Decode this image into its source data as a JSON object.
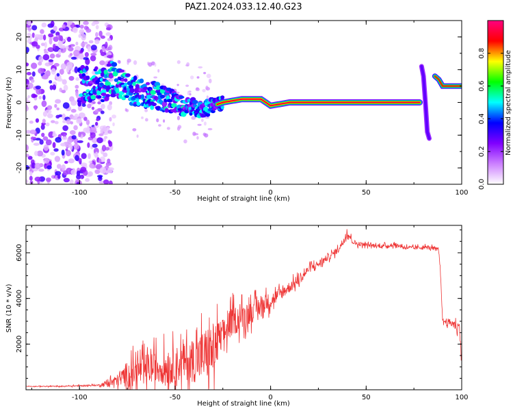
{
  "title": "PAZ1.2024.033.12.40.G23",
  "chart_data": [
    {
      "type": "heatmap",
      "xlabel": "Height of straight line (km)",
      "ylabel": "Frequency (Hz)",
      "xlim": [
        -128,
        100
      ],
      "ylim": [
        -25,
        25
      ],
      "xticks": [
        -100,
        -50,
        0,
        50,
        100
      ],
      "yticks": [
        -20,
        -10,
        0,
        10,
        20
      ],
      "colorbar": {
        "label": "Normalized spectral amplitude",
        "range": [
          0,
          1
        ],
        "ticks": [
          0.0,
          0.2,
          0.4,
          0.6,
          0.8
        ],
        "colormap": [
          "#ffffff",
          "#cc80ff",
          "#8000ff",
          "#0000ff",
          "#00ffff",
          "#00ff00",
          "#ffff00",
          "#ff0000",
          "#ff0080"
        ]
      },
      "signal_track": [
        {
          "x": -85,
          "y": 8
        },
        {
          "x": -75,
          "y": 4
        },
        {
          "x": -60,
          "y": 2
        },
        {
          "x": -45,
          "y": -1
        },
        {
          "x": -35,
          "y": -2
        },
        {
          "x": -25,
          "y": 0
        },
        {
          "x": -15,
          "y": 1
        },
        {
          "x": -5,
          "y": 1
        },
        {
          "x": 0,
          "y": -1
        },
        {
          "x": 10,
          "y": 0
        },
        {
          "x": 30,
          "y": 0
        },
        {
          "x": 50,
          "y": 0
        },
        {
          "x": 78,
          "y": 0
        },
        {
          "x": 80,
          "y": 10
        },
        {
          "x": 82,
          "y": -11
        },
        {
          "x": 86,
          "y": 8
        },
        {
          "x": 90,
          "y": 5
        },
        {
          "x": 100,
          "y": 5
        }
      ]
    },
    {
      "type": "line",
      "xlabel": "Height of straight line (km)",
      "ylabel": "SNR (10 * v/v)",
      "xlim": [
        -128,
        100
      ],
      "ylim": [
        0,
        7200
      ],
      "xticks": [
        -100,
        -50,
        0,
        50,
        100
      ],
      "yticks": [
        2000,
        4000,
        6000
      ],
      "color": "#ee3333",
      "series": [
        {
          "x": [
            -128,
            -110,
            -90,
            -80,
            -75,
            -70,
            -65,
            -60,
            -55,
            -50,
            -45,
            -40,
            -35,
            -30,
            -27,
            -25,
            -22,
            -20,
            -15,
            -10,
            -5,
            0,
            5,
            10,
            15,
            20,
            25,
            30,
            35,
            38,
            40,
            43,
            45,
            50,
            55,
            60,
            65,
            70,
            75,
            80,
            85,
            88,
            89,
            90,
            92,
            95,
            97,
            99,
            100
          ],
          "y": [
            150,
            150,
            200,
            400,
            700,
            800,
            900,
            1000,
            1000,
            1100,
            1200,
            1300,
            1500,
            1700,
            2200,
            2400,
            2800,
            3000,
            3200,
            3400,
            3700,
            3900,
            4200,
            4500,
            4800,
            5300,
            5500,
            5800,
            6100,
            6500,
            6900,
            6500,
            6400,
            6350,
            6300,
            6300,
            6350,
            6250,
            6200,
            6250,
            6200,
            6100,
            5000,
            3000,
            3000,
            2900,
            2800,
            2700,
            1000
          ],
          "noise": [
            20,
            30,
            50,
            400,
            800,
            900,
            950,
            1000,
            1100,
            1100,
            1200,
            1400,
            1700,
            1800,
            1200,
            1000,
            900,
            900,
            800,
            700,
            600,
            500,
            400,
            350,
            300,
            250,
            250,
            200,
            200,
            250,
            250,
            150,
            150,
            120,
            120,
            120,
            120,
            120,
            120,
            120,
            120,
            120,
            100,
            150,
            200,
            250,
            300,
            400,
            600
          ]
        }
      ]
    }
  ]
}
